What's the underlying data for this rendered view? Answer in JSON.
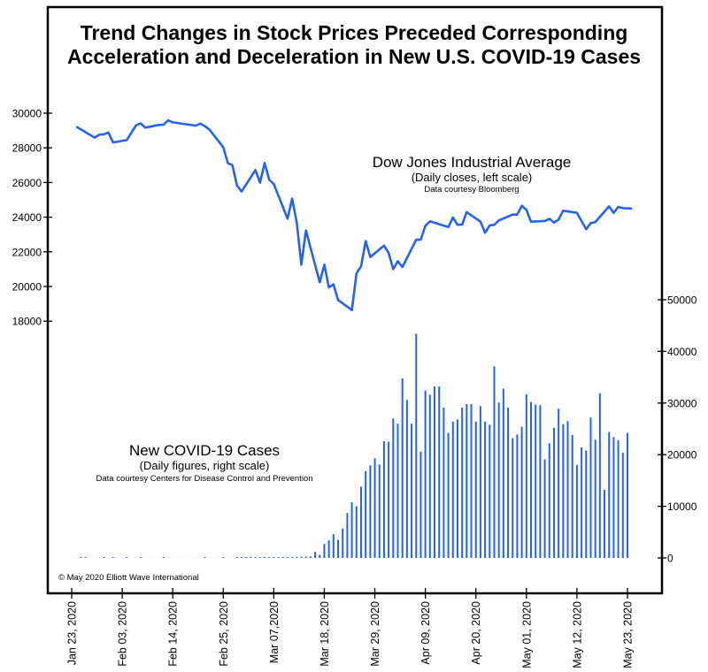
{
  "chart_data": {
    "type": "line+bar",
    "title": "Trend Changes in Stock Prices Preceded Corresponding Acceleration and Deceleration in New U.S. COVID-19 Cases",
    "title_lines": [
      "Trend Changes in Stock Prices Preceded Corresponding",
      "Acceleration and Deceleration in New U.S. COVID-19 Cases"
    ],
    "x_axis": {
      "type": "date",
      "range": [
        "2020-01-18",
        "2020-06-01"
      ],
      "tick_labels": [
        "Jan 23, 2020",
        "Feb 03, 2020",
        "Feb 14, 2020",
        "Feb 25, 2020",
        "Mar 07,2020",
        "Mar 18, 2020",
        "Mar 29, 2020",
        "Apr 09, 2020",
        "Apr 20, 2020",
        "May 01, 2020",
        "May 12, 2020",
        "May 23, 2020"
      ],
      "tick_dates": [
        "2020-01-23",
        "2020-02-03",
        "2020-02-14",
        "2020-02-25",
        "2020-03-07",
        "2020-03-18",
        "2020-03-29",
        "2020-04-09",
        "2020-04-20",
        "2020-05-01",
        "2020-05-12",
        "2020-05-23"
      ]
    },
    "left_axis": {
      "label": "Dow Jones Industrial Average",
      "ylim": [
        16500,
        31500
      ],
      "ticks": [
        18000,
        20000,
        22000,
        24000,
        26000,
        28000,
        30000
      ],
      "tick_labels": [
        "18000",
        "20000",
        "22000",
        "24000",
        "26000",
        "28000",
        "30000"
      ]
    },
    "right_axis": {
      "label": "New COVID-19 Cases",
      "ylim": [
        -7000,
        54000
      ],
      "ticks": [
        0,
        10000,
        20000,
        30000,
        40000,
        50000
      ],
      "tick_labels": [
        "0",
        "10000",
        "20000",
        "30000",
        "40000",
        "50000"
      ]
    },
    "series": [
      {
        "name": "Dow Jones Industrial Average",
        "type": "line",
        "axis": "left",
        "color": "#2563eb",
        "points": [
          [
            "2020-01-24",
            29220
          ],
          [
            "2020-01-28",
            28590
          ],
          [
            "2020-01-29",
            28760
          ],
          [
            "2020-01-30",
            28780
          ],
          [
            "2020-01-31",
            28890
          ],
          [
            "2020-02-01",
            28310
          ],
          [
            "2020-02-04",
            28450
          ],
          [
            "2020-02-06",
            29300
          ],
          [
            "2020-02-07",
            29420
          ],
          [
            "2020-02-08",
            29170
          ],
          [
            "2020-02-11",
            29320
          ],
          [
            "2020-02-12",
            29330
          ],
          [
            "2020-02-13",
            29590
          ],
          [
            "2020-02-14",
            29470
          ],
          [
            "2020-02-19",
            29280
          ],
          [
            "2020-02-20",
            29400
          ],
          [
            "2020-02-21",
            29250
          ],
          [
            "2020-02-22",
            29050
          ],
          [
            "2020-02-25",
            28030
          ],
          [
            "2020-02-26",
            27110
          ],
          [
            "2020-02-27",
            27000
          ],
          [
            "2020-02-28",
            25820
          ],
          [
            "2020-02-29",
            25480
          ],
          [
            "2020-03-03",
            26720
          ],
          [
            "2020-03-04",
            25990
          ],
          [
            "2020-03-05",
            27130
          ],
          [
            "2020-03-06",
            26160
          ],
          [
            "2020-03-07",
            25910
          ],
          [
            "2020-03-10",
            23910
          ],
          [
            "2020-03-11",
            25070
          ],
          [
            "2020-03-12",
            23690
          ],
          [
            "2020-03-13",
            21260
          ],
          [
            "2020-03-14",
            23230
          ],
          [
            "2020-03-17",
            20240
          ],
          [
            "2020-03-18",
            21260
          ],
          [
            "2020-03-19",
            19950
          ],
          [
            "2020-03-20",
            20120
          ],
          [
            "2020-03-21",
            19220
          ],
          [
            "2020-03-24",
            18640
          ],
          [
            "2020-03-25",
            20750
          ],
          [
            "2020-03-26",
            21170
          ],
          [
            "2020-03-27",
            22620
          ],
          [
            "2020-03-28",
            21700
          ],
          [
            "2020-03-31",
            22360
          ],
          [
            "2020-04-01",
            21940
          ],
          [
            "2020-04-02",
            21000
          ],
          [
            "2020-04-03",
            21460
          ],
          [
            "2020-04-04",
            21120
          ],
          [
            "2020-04-07",
            22700
          ],
          [
            "2020-04-08",
            22700
          ],
          [
            "2020-04-09",
            23500
          ],
          [
            "2020-04-10",
            23760
          ],
          [
            "2020-04-14",
            23430
          ],
          [
            "2020-04-15",
            23980
          ],
          [
            "2020-04-16",
            23560
          ],
          [
            "2020-04-17",
            23570
          ],
          [
            "2020-04-18",
            24290
          ],
          [
            "2020-04-21",
            23740
          ],
          [
            "2020-04-22",
            23100
          ],
          [
            "2020-04-23",
            23520
          ],
          [
            "2020-04-24",
            23560
          ],
          [
            "2020-04-25",
            23810
          ],
          [
            "2020-04-28",
            24150
          ],
          [
            "2020-04-29",
            24150
          ],
          [
            "2020-04-30",
            24660
          ],
          [
            "2020-05-01",
            24420
          ],
          [
            "2020-05-02",
            23740
          ],
          [
            "2020-05-05",
            23780
          ],
          [
            "2020-05-06",
            23910
          ],
          [
            "2020-05-07",
            23690
          ],
          [
            "2020-05-08",
            23860
          ],
          [
            "2020-05-09",
            24370
          ],
          [
            "2020-05-12",
            24250
          ],
          [
            "2020-05-14",
            23300
          ],
          [
            "2020-05-15",
            23660
          ],
          [
            "2020-05-16",
            23720
          ],
          [
            "2020-05-19",
            24620
          ],
          [
            "2020-05-20",
            24250
          ],
          [
            "2020-05-21",
            24590
          ],
          [
            "2020-05-22",
            24520
          ],
          [
            "2020-05-24",
            24500
          ]
        ]
      },
      {
        "name": "New COVID-19 Cases",
        "type": "bar",
        "axis": "right",
        "color": "#2563eb",
        "start_date": "2020-01-23",
        "values": [
          0,
          0,
          1,
          2,
          0,
          0,
          0,
          1,
          0,
          1,
          0,
          0,
          1,
          0,
          0,
          1,
          0,
          0,
          0,
          0,
          1,
          0,
          0,
          0,
          0,
          0,
          0,
          0,
          0,
          1,
          0,
          0,
          0,
          1,
          0,
          0,
          5,
          10,
          15,
          20,
          30,
          40,
          50,
          60,
          80,
          100,
          120,
          150,
          200,
          200,
          200,
          250,
          300,
          1150,
          600,
          2700,
          3400,
          4600,
          3500,
          5700,
          8700,
          10800,
          10000,
          13800,
          16800,
          17900,
          19300,
          18100,
          22600,
          22500,
          27000,
          26000,
          34800,
          30600,
          26000,
          43400,
          20600,
          32400,
          31600,
          33200,
          33200,
          29100,
          24200,
          26400,
          26800,
          29100,
          29800,
          29800,
          26400,
          29400,
          26400,
          25800,
          37100,
          30100,
          32800,
          29100,
          23200,
          23900,
          25400,
          31700,
          30200,
          29700,
          29600,
          19100,
          22200,
          25200,
          28900,
          25900,
          26500,
          23800,
          18000,
          21400,
          20800,
          27200,
          22900,
          31900,
          13200,
          24400,
          23400,
          22800,
          20400,
          24200
        ]
      }
    ],
    "annotations": {
      "dow_label": "Dow Jones Industrial Average",
      "dow_sub": "(Daily closes, left scale)",
      "dow_source": "Data courtesy Bloomberg",
      "covid_label": "New COVID-19 Cases",
      "covid_sub": "(Daily figures, right scale)",
      "covid_source": "Data courtesy Centers for Disease Control and Prevention",
      "copyright": "© May 2020 Elliott Wave International"
    },
    "grid": false,
    "legend": "none"
  }
}
